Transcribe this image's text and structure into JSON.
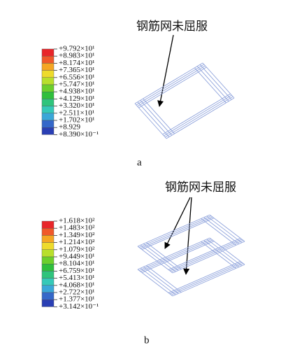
{
  "panels": [
    {
      "legend": {
        "labels": [
          "+9.792×10¹",
          "+8.983×10¹",
          "+8.174×10¹",
          "+7.365×10¹",
          "+6.556×10¹",
          "+5.747×10¹",
          "+4.938×10¹",
          "+4.129×10¹",
          "+3.320×10¹",
          "+2.511×10¹",
          "+1.702×10¹",
          "+8.929",
          "+8.390×10⁻¹"
        ]
      },
      "annotation": "钢筋网未屈服",
      "caption": "a"
    },
    {
      "legend": {
        "labels": [
          "+1.618×10²",
          "+1.483×10²",
          "+1.349×10²",
          "+1.214×10²",
          "+1.079×10²",
          "+9.449×10¹",
          "+8.104×10¹",
          "+6.759×10¹",
          "+5.413×10¹",
          "+4.068×10¹",
          "+2.722×10¹",
          "+1.377×10¹",
          "+3.142×10⁻¹"
        ]
      },
      "annotation": "钢筋网未屈服",
      "caption": "b"
    }
  ],
  "colors": [
    "#e8262a",
    "#f0592a",
    "#f5a623",
    "#eedb2c",
    "#b8df2c",
    "#6ccf2c",
    "#2fbf3c",
    "#2fc47c",
    "#35c9b8",
    "#3aa7d8",
    "#3568c9",
    "#2a3fb4"
  ]
}
